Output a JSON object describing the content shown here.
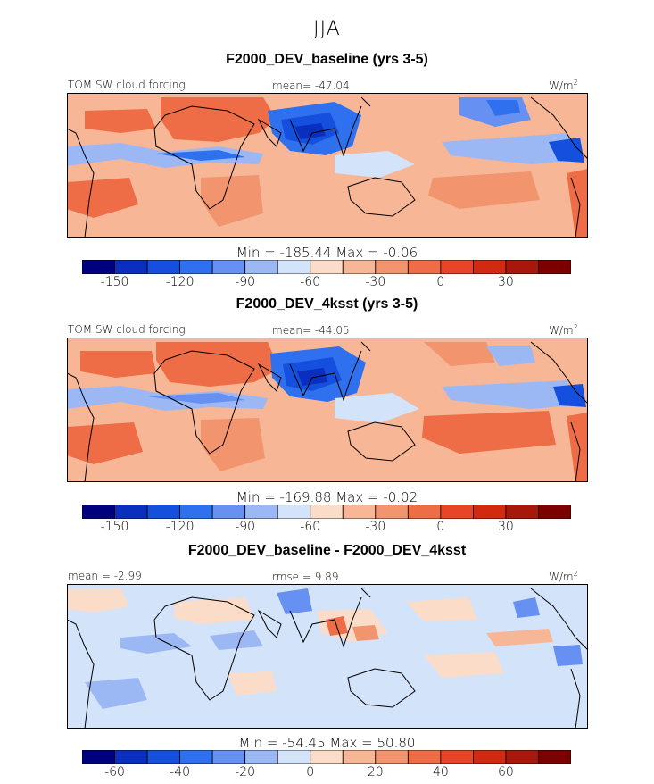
{
  "season": "JJA",
  "units_label": "W/m",
  "units_sup": "2",
  "panels": [
    {
      "title": "F2000_DEV_baseline (yrs 3-5)",
      "variable": "TOM SW cloud forcing",
      "stat": "mean= -47.04",
      "minmax": "Min = -185.44  Max =  -0.06"
    },
    {
      "title": "F2000_DEV_4ksst (yrs 3-5)",
      "variable": "TOM SW cloud forcing",
      "stat": "mean= -44.05",
      "minmax": "Min = -169.88  Max =  -0.02"
    },
    {
      "title": "F2000_DEV_baseline - F2000_DEV_4ksst",
      "stat_left": "mean =  -2.99",
      "stat_mid": "rmse =   9.89",
      "minmax": "Min = -54.45  Max =  50.80"
    }
  ],
  "colorbar_colors": [
    "#00007f",
    "#0a2fbf",
    "#1450dd",
    "#2f70ef",
    "#6690f2",
    "#9bb8f4",
    "#d3e3f9",
    "#fbdcc9",
    "#f7b796",
    "#f2946e",
    "#ee6d47",
    "#e84428",
    "#d12a10",
    "#a7170b",
    "#7d0000"
  ],
  "colorbar_abs": {
    "labels": [
      "-150",
      "-120",
      "-90",
      "-60",
      "-30",
      "0",
      "30"
    ],
    "label_boxes": [
      1,
      3,
      5,
      7,
      9,
      11,
      13
    ]
  },
  "colorbar_diff": {
    "labels": [
      "-60",
      "-40",
      "-20",
      "0",
      "20",
      "40",
      "60"
    ],
    "label_boxes": [
      1,
      3,
      5,
      7,
      9,
      11,
      13
    ]
  },
  "chart_data": [
    {
      "type": "heatmap",
      "title": "F2000_DEV_baseline (yrs 3-5)",
      "variable": "TOM SW cloud forcing",
      "units": "W/m2",
      "mean": -47.04,
      "min": -185.44,
      "max": -0.06,
      "colorbar_ticks": [
        -150,
        -120,
        -90,
        -60,
        -30,
        0,
        30
      ]
    },
    {
      "type": "heatmap",
      "title": "F2000_DEV_4ksst (yrs 3-5)",
      "variable": "TOM SW cloud forcing",
      "units": "W/m2",
      "mean": -44.05,
      "min": -169.88,
      "max": -0.02,
      "colorbar_ticks": [
        -150,
        -120,
        -90,
        -60,
        -30,
        0,
        30
      ]
    },
    {
      "type": "heatmap",
      "title": "F2000_DEV_baseline - F2000_DEV_4ksst",
      "units": "W/m2",
      "mean": -2.99,
      "rmse": 9.89,
      "min": -54.45,
      "max": 50.8,
      "colorbar_ticks": [
        -60,
        -40,
        -20,
        0,
        20,
        40,
        60
      ]
    }
  ]
}
